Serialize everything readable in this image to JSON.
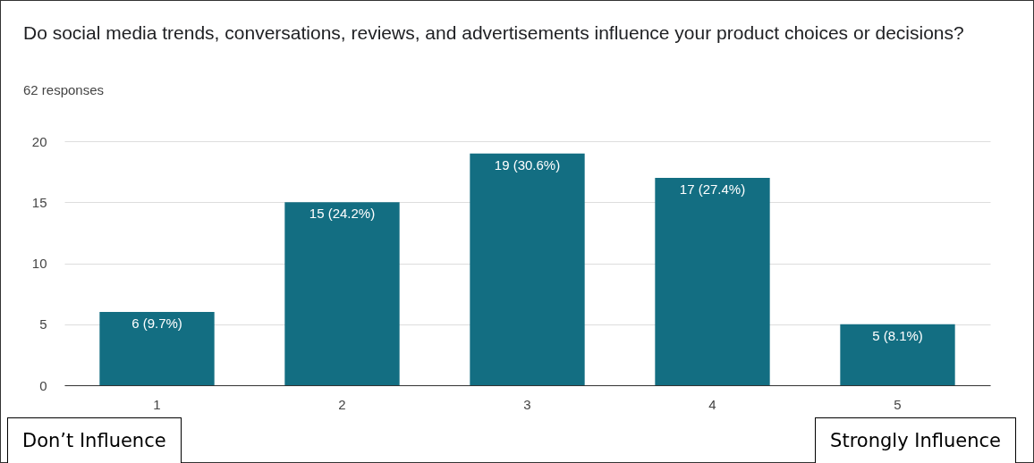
{
  "chart_data": {
    "type": "bar",
    "title": "Do social media trends, conversations, reviews, and advertisements influence your product choices or decisions?",
    "subtitle": "62 responses",
    "categories": [
      "1",
      "2",
      "3",
      "4",
      "5"
    ],
    "values": [
      6,
      15,
      19,
      17,
      5
    ],
    "value_labels": [
      "6 (9.7%)",
      "15 (24.2%)",
      "19 (30.6%)",
      "17 (27.4%)",
      "5 (8.1%)"
    ],
    "color": "#136e82",
    "ylim": [
      0,
      20
    ],
    "yticks": [
      0,
      5,
      10,
      15,
      20
    ],
    "grid": "y",
    "annotations": [
      "Don’t Influence",
      "Strongly Influence"
    ]
  }
}
